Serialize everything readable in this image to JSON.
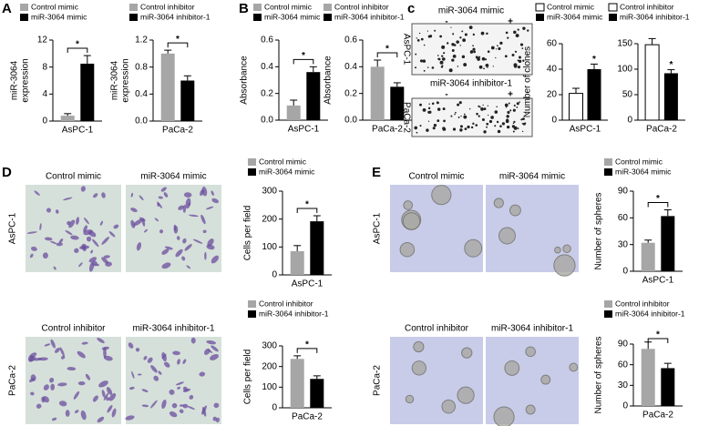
{
  "figure": {
    "panel_labels": [
      "A",
      "B",
      "c",
      "D",
      "E"
    ],
    "clone_images": [
      {
        "caption": "miR-3064 mimic",
        "minus": "-",
        "plus": "+",
        "side": "AsPC-1"
      },
      {
        "caption": "miR-3064 inhibitor-1",
        "minus": "-",
        "plus": "+",
        "side": "PaCa-2"
      }
    ],
    "migration_images": [
      {
        "side": "AsPC-1",
        "captions": [
          "Control mimic",
          "miR-3064 mimic"
        ]
      },
      {
        "side": "PaCa-2",
        "captions": [
          "Control inhibitor",
          "miR-3064 inhibitor-1"
        ]
      }
    ],
    "sphere_images": [
      {
        "side": "AsPC-1",
        "captions": [
          "Control mimic",
          "miR-3064 mimic"
        ]
      },
      {
        "side": "PaCa-2",
        "captions": [
          "Control inhibitor",
          "miR-3064 inhibitor-1"
        ]
      }
    ]
  },
  "chart_data": [
    {
      "type": "bar",
      "categories": [
        "AsPC-1"
      ],
      "ylabel": [
        "miR-3064",
        "expression"
      ],
      "ylim": [
        0,
        12
      ],
      "yticks": [
        0,
        4,
        8,
        12
      ],
      "annotation": "*",
      "bracket": true,
      "series": [
        {
          "name": "Control mimic",
          "color": "#a6a6a6",
          "values": [
            0.8
          ],
          "errors": [
            0.3
          ]
        },
        {
          "name": "miR-3064 mimic",
          "color": "#000000",
          "values": [
            8.5
          ],
          "errors": [
            1.2
          ]
        }
      ]
    },
    {
      "type": "bar",
      "categories": [
        "PaCa-2"
      ],
      "ylabel": [
        "miR-3064",
        "expression"
      ],
      "ylim": [
        0,
        1.2
      ],
      "yticks": [
        {
          "value": 0,
          "label": "0.0"
        },
        0.4,
        0.8,
        1.2
      ],
      "annotation": "*",
      "bracket": true,
      "series": [
        {
          "name": "Control inhibitor",
          "color": "#a6a6a6",
          "values": [
            1.0
          ],
          "errors": [
            0.05
          ]
        },
        {
          "name": "miR-3064 inhibitor-1",
          "color": "#000000",
          "values": [
            0.6
          ],
          "errors": [
            0.07
          ]
        }
      ]
    },
    {
      "type": "bar",
      "categories": [
        "AsPC-1"
      ],
      "ylabel": [
        "Absorbance"
      ],
      "ylim": [
        0,
        0.6
      ],
      "yticks": [
        {
          "value": 0,
          "label": "0.0"
        },
        0.2,
        0.4,
        0.6
      ],
      "annotation": "*",
      "bracket": true,
      "series": [
        {
          "name": "Control mimic",
          "color": "#a6a6a6",
          "values": [
            0.11
          ],
          "errors": [
            0.04
          ]
        },
        {
          "name": "miR-3064 mimic",
          "color": "#000000",
          "values": [
            0.36
          ],
          "errors": [
            0.04
          ]
        }
      ]
    },
    {
      "type": "bar",
      "categories": [
        "PaCa-2"
      ],
      "ylabel": [
        "Absorbance"
      ],
      "ylim": [
        0,
        0.6
      ],
      "yticks": [
        {
          "value": 0,
          "label": "0.0"
        },
        0.2,
        0.4,
        0.6
      ],
      "annotation": "*",
      "bracket": true,
      "series": [
        {
          "name": "Control inhibitor",
          "color": "#a6a6a6",
          "values": [
            0.4
          ],
          "errors": [
            0.05
          ]
        },
        {
          "name": "miR-3064 inhibitor-1",
          "color": "#000000",
          "values": [
            0.25
          ],
          "errors": [
            0.03
          ]
        }
      ]
    },
    {
      "type": "bar",
      "categories": [
        "AsPC-1"
      ],
      "ylabel": [
        "Number of clones"
      ],
      "ylim": [
        0,
        60
      ],
      "yticks": [
        0,
        20,
        40,
        60
      ],
      "annotation": "*",
      "bracket": false,
      "series": [
        {
          "name": "Control mimic",
          "color": "#ffffff",
          "values": [
            21
          ],
          "errors": [
            4
          ]
        },
        {
          "name": "miR-3064 mimic",
          "color": "#000000",
          "values": [
            40
          ],
          "errors": [
            4
          ]
        }
      ]
    },
    {
      "type": "bar",
      "categories": [
        "PaCa-2"
      ],
      "ylim": [
        0,
        150
      ],
      "yticks": [
        0,
        50,
        100,
        150
      ],
      "annotation": "*",
      "bracket": false,
      "series": [
        {
          "name": "Control inhibitor",
          "color": "#ffffff",
          "values": [
            148
          ],
          "errors": [
            12
          ]
        },
        {
          "name": "miR-3064 inhibitor-1",
          "color": "#000000",
          "values": [
            92
          ],
          "errors": [
            7
          ]
        }
      ]
    },
    {
      "type": "bar",
      "categories": [
        "AsPC-1"
      ],
      "ylabel": [
        "Cells per field"
      ],
      "ylim": [
        0,
        300
      ],
      "yticks": [
        0,
        100,
        200,
        300
      ],
      "annotation": "*",
      "bracket": true,
      "series": [
        {
          "name": "Control mimic",
          "color": "#a6a6a6",
          "values": [
            85
          ],
          "errors": [
            20
          ]
        },
        {
          "name": "miR-3064 mimic",
          "color": "#000000",
          "values": [
            192
          ],
          "errors": [
            20
          ]
        }
      ]
    },
    {
      "type": "bar",
      "categories": [
        "PaCa-2"
      ],
      "ylabel": [
        "Cells per field"
      ],
      "ylim": [
        0,
        300
      ],
      "yticks": [
        0,
        100,
        200,
        300
      ],
      "annotation": "*",
      "bracket": true,
      "series": [
        {
          "name": "Control inhibitor",
          "color": "#a6a6a6",
          "values": [
            237
          ],
          "errors": [
            15
          ]
        },
        {
          "name": "miR-3064 inhibitor-1",
          "color": "#000000",
          "values": [
            140
          ],
          "errors": [
            15
          ]
        }
      ]
    },
    {
      "type": "bar",
      "categories": [
        "AsPC-1"
      ],
      "ylabel": [
        "Number of spheres"
      ],
      "ylim": [
        0,
        90
      ],
      "yticks": [
        0,
        30,
        60,
        90
      ],
      "annotation": "*",
      "bracket": true,
      "series": [
        {
          "name": "Control mimic",
          "color": "#a6a6a6",
          "values": [
            32
          ],
          "errors": [
            3
          ]
        },
        {
          "name": "miR-3064 mimic",
          "color": "#000000",
          "values": [
            62
          ],
          "errors": [
            7
          ]
        }
      ]
    },
    {
      "type": "bar",
      "categories": [
        "PaCa-2"
      ],
      "ylabel": [
        "Number of spheres"
      ],
      "ylim": [
        0,
        90
      ],
      "yticks": [
        0,
        30,
        60,
        90
      ],
      "annotation": "*",
      "bracket": true,
      "series": [
        {
          "name": "Control inhibitor",
          "color": "#a6a6a6",
          "values": [
            83
          ],
          "errors": [
            10
          ]
        },
        {
          "name": "miR-3064 inhibitor-1",
          "color": "#000000",
          "values": [
            55
          ],
          "errors": [
            7
          ]
        }
      ]
    }
  ]
}
